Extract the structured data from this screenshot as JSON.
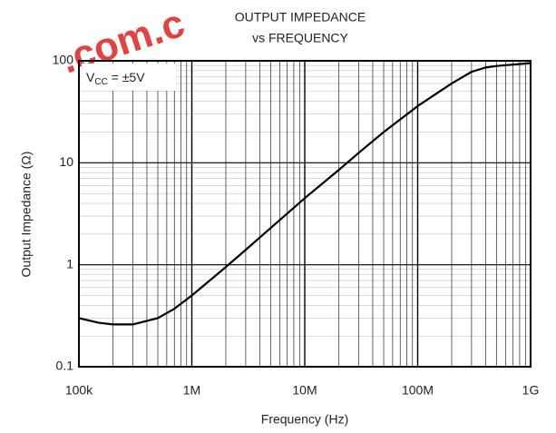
{
  "chart_data": {
    "type": "line",
    "title": "OUTPUT IMPEDANCE",
    "subtitle": "vs FREQUENCY",
    "xlabel": "Frequency (Hz)",
    "ylabel": "Output Impedance (Ω)",
    "annotation": {
      "main": "V",
      "sub": "CC",
      "rest": " = ±5V"
    },
    "watermark": ".com.c",
    "x": [
      100000,
      150000,
      200000,
      300000,
      500000,
      700000,
      1000000,
      2000000,
      3000000,
      5000000,
      10000000,
      20000000,
      30000000,
      50000000,
      100000000,
      200000000,
      300000000,
      400000000,
      500000000,
      1000000000
    ],
    "series": [
      {
        "name": "Output Impedance",
        "color": "#000000",
        "values": [
          0.3,
          0.27,
          0.26,
          0.26,
          0.3,
          0.37,
          0.5,
          0.95,
          1.4,
          2.3,
          4.5,
          8.5,
          12.5,
          20,
          36,
          60,
          78,
          86,
          89,
          95
        ]
      }
    ],
    "xlim": [
      100000,
      1000000000
    ],
    "ylim": [
      0.1,
      100
    ],
    "xticks": [
      {
        "value": 100000,
        "label": "100k"
      },
      {
        "value": 1000000,
        "label": "1M"
      },
      {
        "value": 10000000,
        "label": "10M"
      },
      {
        "value": 100000000,
        "label": "100M"
      },
      {
        "value": 1000000000,
        "label": "1G"
      }
    ],
    "yticks": [
      0.1,
      1,
      10,
      100
    ],
    "xscale": "log",
    "yscale": "log",
    "grid": true,
    "minor_grid": true
  }
}
